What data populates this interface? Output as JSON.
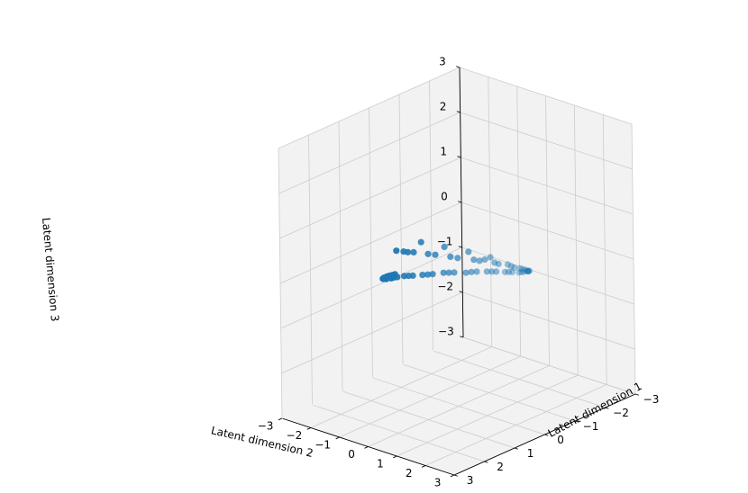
{
  "chart_data": {
    "type": "scatter",
    "projection": "3d",
    "xlabel": "Latent dimension 1",
    "ylabel": "Latent dimension 2",
    "zlabel": "Latent dimension 3",
    "xlim": [
      -3,
      3
    ],
    "ylim": [
      -3,
      3
    ],
    "zlim": [
      -3,
      3
    ],
    "xticks": [
      "−3",
      "−2",
      "−1",
      "0",
      "1",
      "2",
      "3"
    ],
    "yticks": [
      "−3",
      "−2",
      "−1",
      "0",
      "1",
      "2",
      "3"
    ],
    "zticks": [
      "−3",
      "−2",
      "−1",
      "0",
      "1",
      "2",
      "3"
    ],
    "grid": true,
    "pane_color": "#f2f2f2",
    "grid_color": "#cccccc",
    "marker_color": "#1f77b4",
    "view": {
      "elev": 30,
      "azim": -60
    },
    "points": [
      {
        "x": 0.32,
        "y": -1.77,
        "z": 0.18
      },
      {
        "x": -0.22,
        "y": -1.74,
        "z": -0.01
      },
      {
        "x": -0.78,
        "y": -1.58,
        "z": -0.2
      },
      {
        "x": -1.28,
        "y": -1.33,
        "z": -0.37
      },
      {
        "x": -1.68,
        "y": -0.99,
        "z": -0.48
      },
      {
        "x": -1.91,
        "y": -0.57,
        "z": -0.53
      },
      {
        "x": -1.97,
        "y": -0.08,
        "z": -0.53
      },
      {
        "x": -1.88,
        "y": 0.39,
        "z": -0.45
      },
      {
        "x": -1.61,
        "y": 0.83,
        "z": -0.3
      },
      {
        "x": -1.2,
        "y": 1.2,
        "z": -0.11
      },
      {
        "x": -0.66,
        "y": 1.47,
        "z": 0.08
      },
      {
        "x": -0.11,
        "y": 1.57,
        "z": 0.28
      },
      {
        "x": 0.45,
        "y": 1.53,
        "z": 0.45
      },
      {
        "x": 0.97,
        "y": 1.35,
        "z": 0.54
      },
      {
        "x": 1.4,
        "y": 1.02,
        "z": 0.6
      },
      {
        "x": 1.71,
        "y": 0.61,
        "z": 0.56
      },
      {
        "x": 1.86,
        "y": 0.13,
        "z": 0.48
      },
      {
        "x": 1.82,
        "y": -0.37,
        "z": 0.31
      },
      {
        "x": 1.62,
        "y": -0.85,
        "z": 0.14
      },
      {
        "x": 1.22,
        "y": -1.24,
        "z": -0.04
      },
      {
        "x": 0.74,
        "y": -1.55,
        "z": -0.2
      },
      {
        "x": -0.43,
        "y": -1.7,
        "z": 0.16
      },
      {
        "x": -1.0,
        "y": -1.49,
        "z": -0.07
      },
      {
        "x": -1.47,
        "y": -1.15,
        "z": -0.25
      },
      {
        "x": -1.83,
        "y": -0.77,
        "z": -0.4
      },
      {
        "x": -1.96,
        "y": -0.3,
        "z": -0.5
      },
      {
        "x": -1.93,
        "y": 0.16,
        "z": -0.48
      },
      {
        "x": -1.73,
        "y": 0.62,
        "z": -0.38
      },
      {
        "x": -1.41,
        "y": 1.01,
        "z": -0.21
      },
      {
        "x": -0.93,
        "y": 1.35,
        "z": -0.01
      },
      {
        "x": -0.38,
        "y": 1.53,
        "z": 0.19
      },
      {
        "x": 0.17,
        "y": 1.56,
        "z": 0.37
      },
      {
        "x": 0.71,
        "y": 1.45,
        "z": 0.51
      },
      {
        "x": 1.2,
        "y": 1.18,
        "z": 0.58
      },
      {
        "x": 1.57,
        "y": 0.82,
        "z": 0.58
      },
      {
        "x": 1.8,
        "y": 0.37,
        "z": 0.52
      },
      {
        "x": 1.85,
        "y": -0.12,
        "z": 0.4
      },
      {
        "x": 1.74,
        "y": -0.62,
        "z": 0.22
      },
      {
        "x": 1.44,
        "y": -1.05,
        "z": 0.05
      },
      {
        "x": 0.99,
        "y": -1.41,
        "z": -0.12
      },
      {
        "x": 0.48,
        "y": -1.66,
        "z": -0.27
      },
      {
        "x": -0.05,
        "y": -1.76,
        "z": 0.04
      },
      {
        "x": -0.6,
        "y": -1.64,
        "z": -0.14
      },
      {
        "x": -1.12,
        "y": -1.41,
        "z": -0.31
      },
      {
        "x": -1.57,
        "y": -1.07,
        "z": -0.44
      },
      {
        "x": -1.87,
        "y": -0.67,
        "z": -0.51
      },
      {
        "x": -1.97,
        "y": -0.19,
        "z": -0.52
      },
      {
        "x": -1.91,
        "y": 0.27,
        "z": -0.47
      },
      {
        "x": -1.67,
        "y": 0.72,
        "z": -0.34
      },
      {
        "x": -1.31,
        "y": 1.1,
        "z": -0.16
      },
      {
        "x": -0.8,
        "y": 1.42,
        "z": 0.04
      },
      {
        "x": -0.24,
        "y": 1.56,
        "z": 0.24
      },
      {
        "x": 0.31,
        "y": 1.55,
        "z": 0.41
      },
      {
        "x": 0.84,
        "y": 1.4,
        "z": 0.53
      },
      {
        "x": 1.3,
        "y": 1.1,
        "z": 0.59
      },
      {
        "x": 1.64,
        "y": 0.72,
        "z": 0.57
      },
      {
        "x": 1.83,
        "y": 0.25,
        "z": 0.5
      },
      {
        "x": 1.84,
        "y": -0.25,
        "z": 0.36
      },
      {
        "x": 1.68,
        "y": -0.74,
        "z": 0.18
      },
      {
        "x": 1.33,
        "y": -1.15,
        "z": 0.01
      },
      {
        "x": 0.86,
        "y": -1.48,
        "z": -0.16
      },
      {
        "x": 0.61,
        "y": -1.61,
        "z": -0.24
      },
      {
        "x": 0.08,
        "y": -1.77,
        "z": 0.09
      },
      {
        "x": -1.75,
        "y": -0.88,
        "z": -0.45
      },
      {
        "x": 1.55,
        "y": -0.95,
        "z": 0.1
      }
    ]
  }
}
